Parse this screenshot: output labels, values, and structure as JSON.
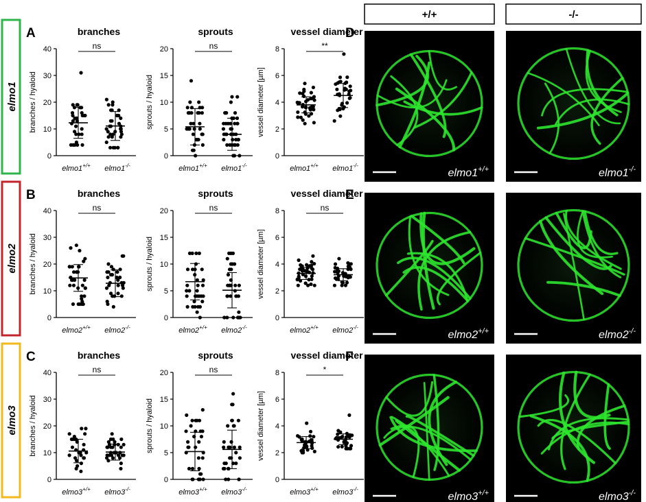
{
  "colors": {
    "elmo1": "#2eb54a",
    "elmo2": "#c3262a",
    "elmo3": "#f2b81c",
    "vessel": "#2ee62e",
    "background": "#000000"
  },
  "genotype_headers": [
    "+/+",
    "-/-"
  ],
  "rows": [
    {
      "gene": "elmo1",
      "letter": "A",
      "image_letter": "D",
      "image_labels": [
        {
          "base": "elmo1",
          "sup": "+/+"
        },
        {
          "base": "elmo1",
          "sup": "-/-"
        }
      ],
      "charts": [
        {
          "title": "branches",
          "ylabel": "branches / hyaloid",
          "ylim": [
            0,
            40
          ],
          "ticks": [
            0,
            10,
            20,
            30,
            40
          ],
          "sig": "ns",
          "groups": [
            {
              "base": "elmo1",
              "sup": "+/+",
              "mean": 12.3,
              "sd": 5.8,
              "n": 30,
              "min": 4,
              "max": 31
            },
            {
              "base": "elmo1",
              "sup": "-/-",
              "mean": 11.1,
              "sd": 5.4,
              "n": 34,
              "min": 3,
              "max": 21
            }
          ]
        },
        {
          "title": "sprouts",
          "ylabel": "sprouts / hyaloid",
          "ylim": [
            0,
            20
          ],
          "ticks": [
            0,
            5,
            10,
            15,
            20
          ],
          "sig": "ns",
          "groups": [
            {
              "base": "elmo1",
              "sup": "+/+",
              "mean": 5.4,
              "sd": 3.4,
              "n": 32,
              "min": 0,
              "max": 14
            },
            {
              "base": "elmo1",
              "sup": "-/-",
              "mean": 4.0,
              "sd": 3.0,
              "n": 40,
              "min": 0,
              "max": 11
            }
          ]
        },
        {
          "title": "vessel diameter",
          "ylabel": "vessel diameter [µm]",
          "ylim": [
            0,
            8
          ],
          "ticks": [
            0,
            2,
            4,
            6,
            8
          ],
          "sig": "**",
          "groups": [
            {
              "base": "elmo1",
              "sup": "+/+",
              "mean": 3.8,
              "sd": 0.6,
              "n": 36,
              "min": 2.4,
              "max": 5.4
            },
            {
              "base": "elmo1",
              "sup": "-/-",
              "mean": 4.5,
              "sd": 0.9,
              "n": 32,
              "min": 2.6,
              "max": 7.6
            }
          ]
        }
      ]
    },
    {
      "gene": "elmo2",
      "letter": "B",
      "image_letter": "E",
      "image_labels": [
        {
          "base": "elmo2",
          "sup": "+/+"
        },
        {
          "base": "elmo2",
          "sup": "-/-"
        }
      ],
      "charts": [
        {
          "title": "branches",
          "ylabel": "branches / hyaloid",
          "ylim": [
            0,
            40
          ],
          "ticks": [
            0,
            10,
            20,
            30,
            40
          ],
          "sig": "ns",
          "groups": [
            {
              "base": "elmo2",
              "sup": "+/+",
              "mean": 14.8,
              "sd": 5.0,
              "n": 34,
              "min": 5,
              "max": 27
            },
            {
              "base": "elmo2",
              "sup": "-/-",
              "mean": 12.8,
              "sd": 5.0,
              "n": 32,
              "min": 4,
              "max": 23
            }
          ]
        },
        {
          "title": "sprouts",
          "ylabel": "sprouts / hyaloid",
          "ylim": [
            0,
            20
          ],
          "ticks": [
            0,
            5,
            10,
            15,
            20
          ],
          "sig": "ns",
          "groups": [
            {
              "base": "elmo2",
              "sup": "+/+",
              "mean": 6.7,
              "sd": 3.4,
              "n": 34,
              "min": 0,
              "max": 12
            },
            {
              "base": "elmo2",
              "sup": "-/-",
              "mean": 5.1,
              "sd": 3.3,
              "n": 32,
              "min": 0,
              "max": 12
            }
          ]
        },
        {
          "title": "vessel diameter",
          "ylabel": "vessel diameter [µm]",
          "ylim": [
            0,
            8
          ],
          "ticks": [
            0,
            2,
            4,
            6,
            8
          ],
          "sig": "ns",
          "groups": [
            {
              "base": "elmo2",
              "sup": "+/+",
              "mean": 3.3,
              "sd": 0.45,
              "n": 36,
              "min": 2.4,
              "max": 4.6
            },
            {
              "base": "elmo2",
              "sup": "-/-",
              "mean": 3.2,
              "sd": 0.45,
              "n": 36,
              "min": 2.4,
              "max": 4.4
            }
          ]
        }
      ]
    },
    {
      "gene": "elmo3",
      "letter": "C",
      "image_letter": "F",
      "image_labels": [
        {
          "base": "elmo3",
          "sup": "+/+"
        },
        {
          "base": "elmo3",
          "sup": "-/-"
        }
      ],
      "charts": [
        {
          "title": "branches",
          "ylabel": "branches / hyaloid",
          "ylim": [
            0,
            40
          ],
          "ticks": [
            0,
            10,
            20,
            30,
            40
          ],
          "sig": "ns",
          "groups": [
            {
              "base": "elmo3",
              "sup": "+/+",
              "mean": 10.6,
              "sd": 4.4,
              "n": 30,
              "min": 3,
              "max": 19
            },
            {
              "base": "elmo3",
              "sup": "-/-",
              "mean": 10.2,
              "sd": 3.0,
              "n": 32,
              "min": 4,
              "max": 17
            }
          ]
        },
        {
          "title": "sprouts",
          "ylabel": "sprouts / hyaloid",
          "ylim": [
            0,
            20
          ],
          "ticks": [
            0,
            5,
            10,
            15,
            20
          ],
          "sig": "ns",
          "groups": [
            {
              "base": "elmo3",
              "sup": "+/+",
              "mean": 5.2,
              "sd": 3.6,
              "n": 34,
              "min": 0,
              "max": 13
            },
            {
              "base": "elmo3",
              "sup": "-/-",
              "mean": 5.6,
              "sd": 3.6,
              "n": 32,
              "min": 0,
              "max": 16
            }
          ]
        },
        {
          "title": "vessel diameter",
          "ylabel": "vessel diameter [µm]",
          "ylim": [
            0,
            8
          ],
          "ticks": [
            0,
            2,
            4,
            6,
            8
          ],
          "sig": "*",
          "groups": [
            {
              "base": "elmo3",
              "sup": "+/+",
              "mean": 2.75,
              "sd": 0.45,
              "n": 30,
              "min": 2.0,
              "max": 4.2
            },
            {
              "base": "elmo3",
              "sup": "-/-",
              "mean": 3.0,
              "sd": 0.4,
              "n": 30,
              "min": 2.3,
              "max": 4.8
            }
          ]
        }
      ]
    }
  ]
}
